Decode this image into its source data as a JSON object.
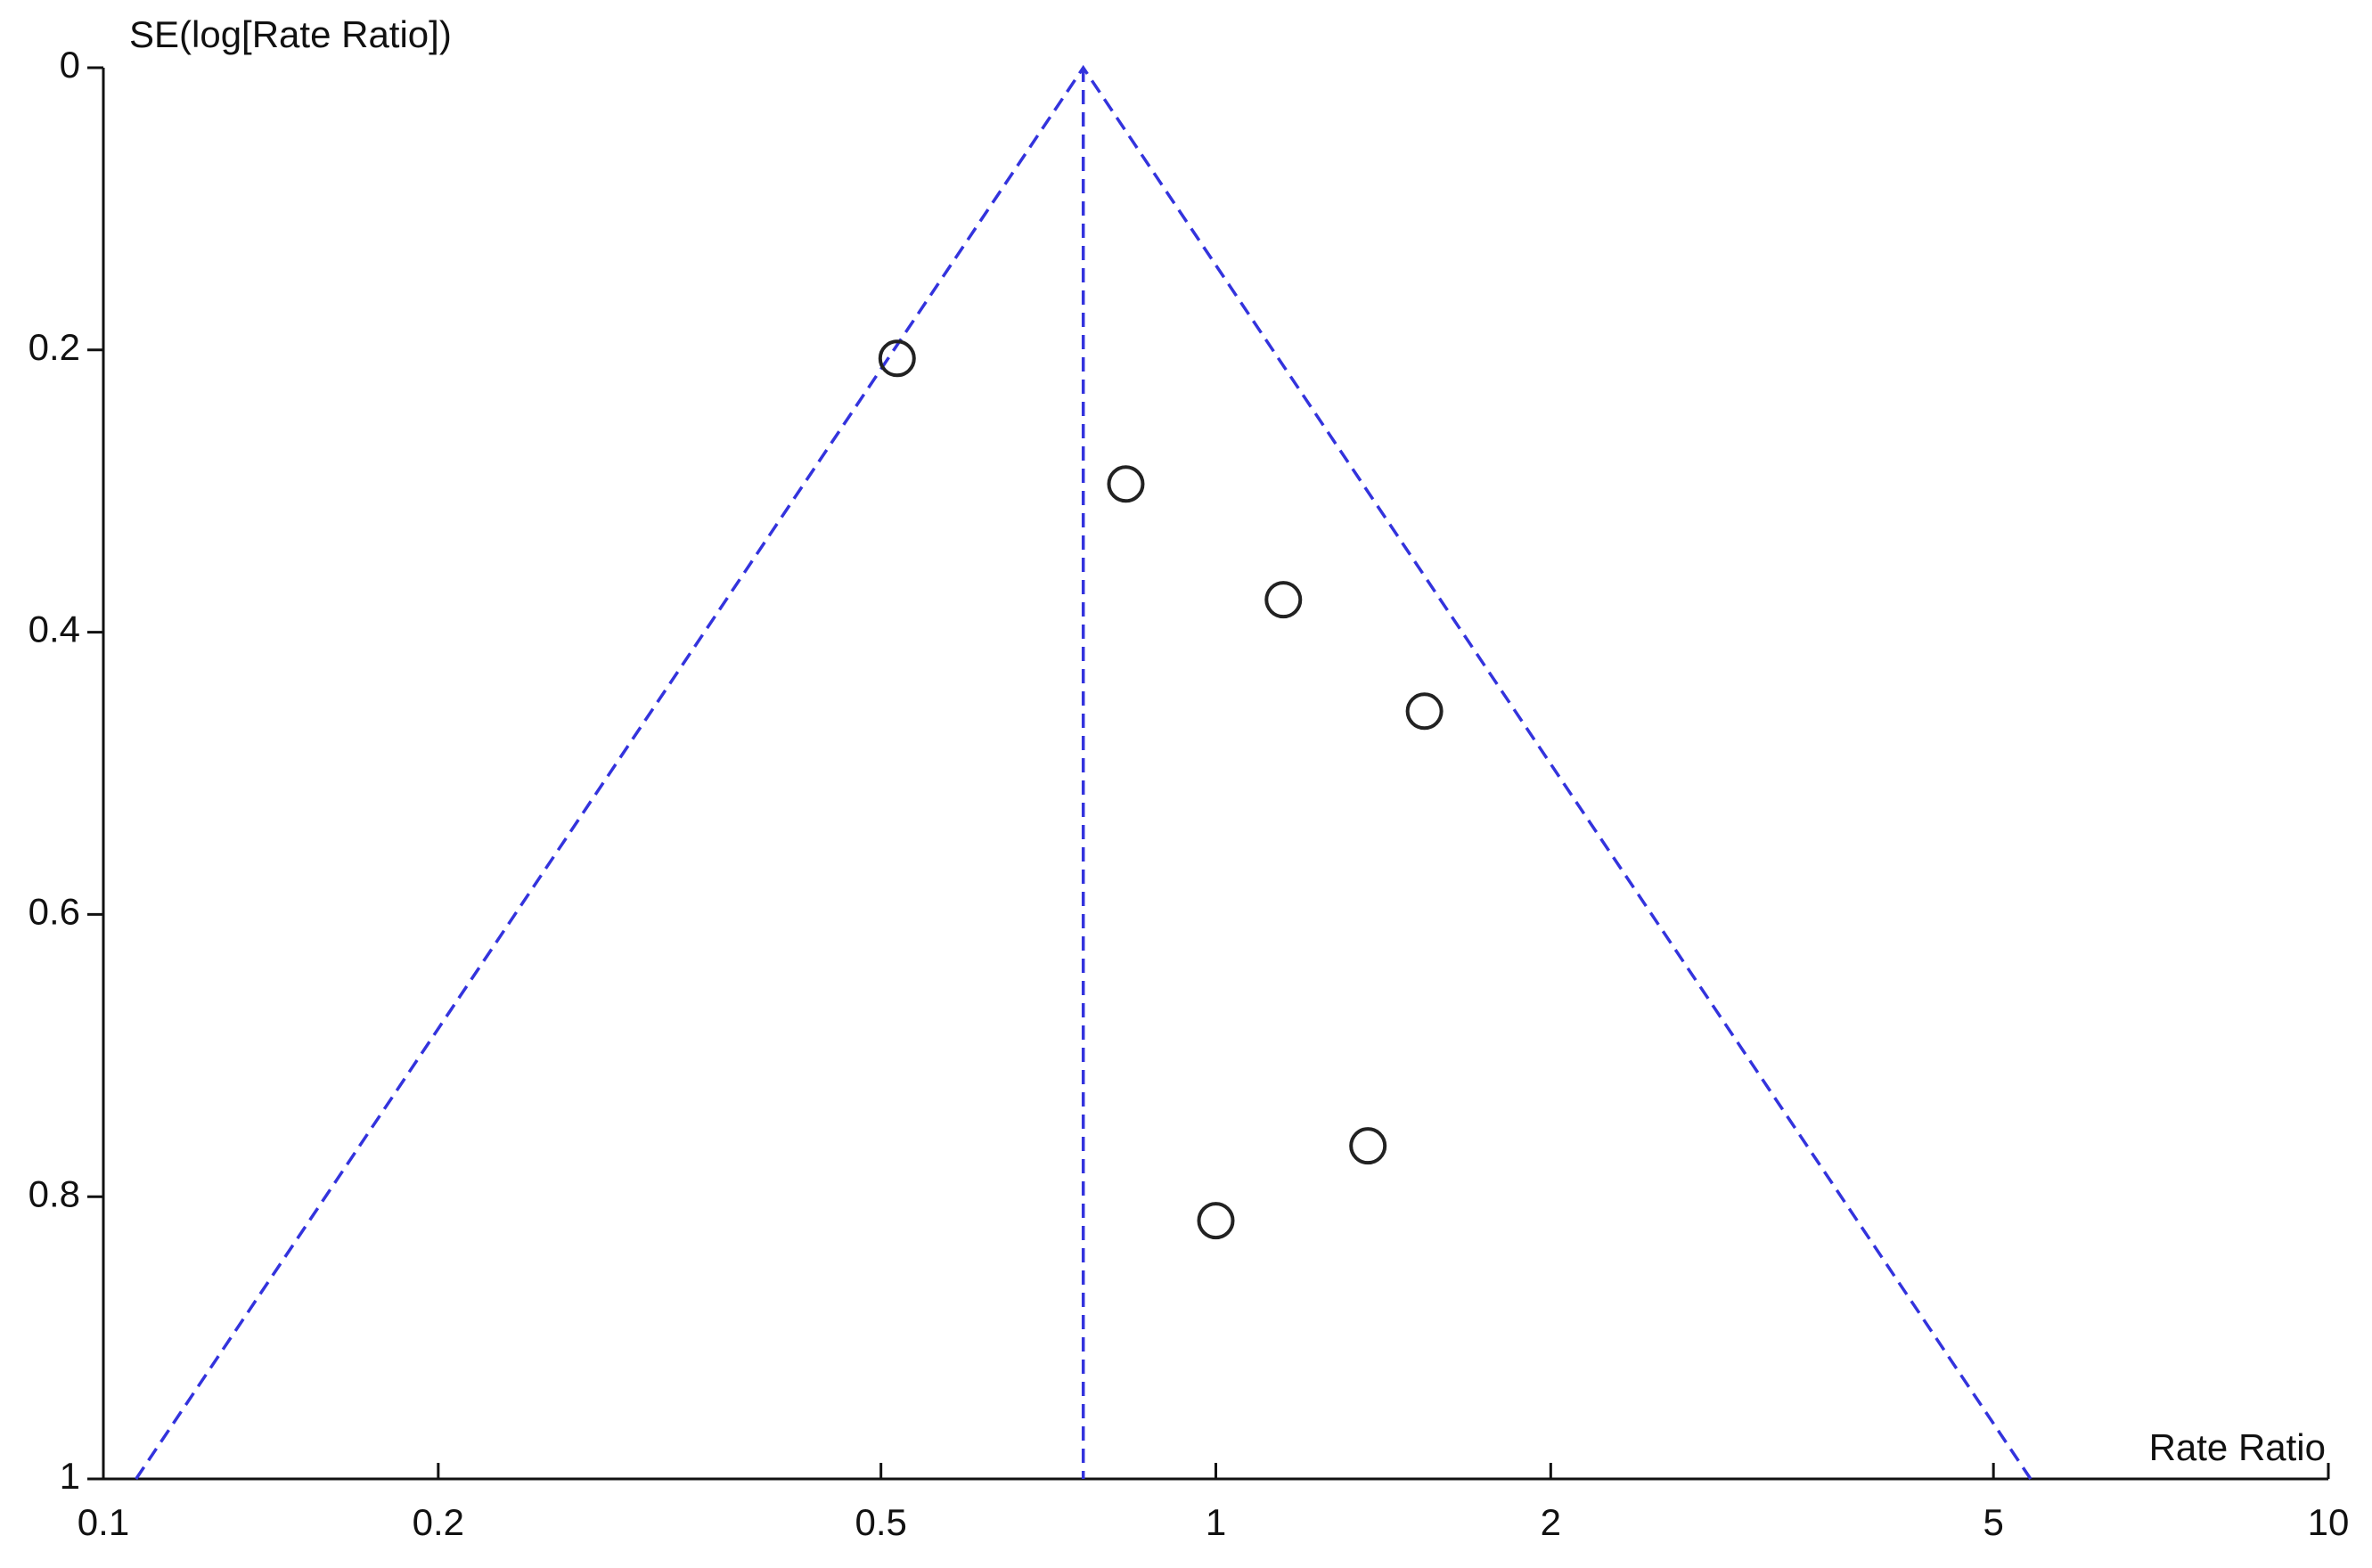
{
  "chart_data": {
    "type": "scatter",
    "x_label": "Rate Ratio",
    "y_label": "SE(log[Rate Ratio])",
    "x": [
      0.517,
      0.83,
      1.15,
      1.54,
      1.37,
      1.0
    ],
    "values": [
      0.206,
      0.295,
      0.377,
      0.456,
      0.764,
      0.817
    ],
    "marker_color": "#222222",
    "xlim": [
      0.1,
      10
    ],
    "xticks": [
      0.1,
      0.2,
      0.5,
      1,
      2,
      5,
      10
    ],
    "x_log": true,
    "ylim": [
      0,
      1
    ],
    "yticks": [
      0,
      0.2,
      0.4,
      0.6,
      0.8,
      1
    ],
    "y_inverted": true,
    "lines": [
      {
        "x": [
          0.107,
          0.76,
          5.4
        ],
        "values": [
          1,
          0,
          1
        ],
        "color": "#3333dd",
        "dashed": true
      },
      {
        "x": [
          0.76,
          0.76
        ],
        "values": [
          0,
          1
        ],
        "color": "#3333dd",
        "dashed": true
      }
    ]
  }
}
